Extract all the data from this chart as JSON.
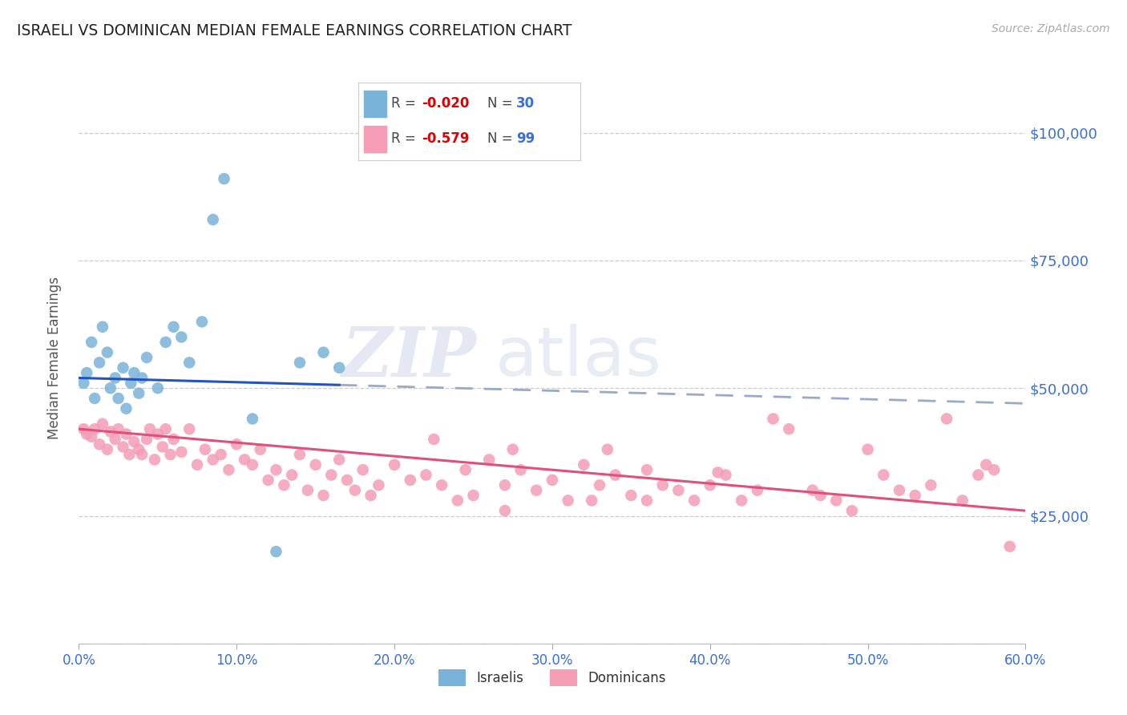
{
  "title": "ISRAELI VS DOMINICAN MEDIAN FEMALE EARNINGS CORRELATION CHART",
  "source": "Source: ZipAtlas.com",
  "ylabel": "Median Female Earnings",
  "xtick_vals": [
    0.0,
    10.0,
    20.0,
    30.0,
    40.0,
    50.0,
    60.0
  ],
  "ytick_vals": [
    0,
    25000,
    50000,
    75000,
    100000
  ],
  "ytick_labels": [
    "",
    "$25,000",
    "$50,000",
    "$75,000",
    "$100,000"
  ],
  "xmin": 0.0,
  "xmax": 60.0,
  "ymin": 0,
  "ymax": 112000,
  "israeli_color": "#7ab3d9",
  "dominican_color": "#f49db5",
  "israeli_R": "-0.020",
  "israeli_N": "30",
  "dominican_R": "-0.579",
  "dominican_N": "99",
  "watermark_zip": "ZIP",
  "watermark_atlas": "atlas",
  "background_color": "#ffffff",
  "grid_color": "#cccccc",
  "axis_label_color": "#3a6fd8",
  "title_color": "#222222",
  "legend_R_color": "#dd0000",
  "legend_N_color": "#3a6fd8",
  "israeli_line_color": "#2255bb",
  "dominican_line_color": "#e0507a",
  "dashed_line_color": "#99aacc",
  "israeli_dots_x": [
    0.3,
    0.5,
    0.8,
    1.0,
    1.3,
    1.5,
    1.8,
    2.0,
    2.3,
    2.5,
    2.8,
    3.0,
    3.3,
    3.5,
    3.8,
    4.0,
    4.3,
    5.0,
    5.5,
    6.0,
    6.5,
    7.0,
    7.8,
    8.5,
    9.2,
    11.0,
    12.5,
    14.0,
    15.5,
    16.5
  ],
  "israeli_dots_y": [
    51000,
    53000,
    59000,
    48000,
    55000,
    62000,
    57000,
    50000,
    52000,
    48000,
    54000,
    46000,
    51000,
    53000,
    49000,
    52000,
    56000,
    50000,
    59000,
    62000,
    60000,
    55000,
    63000,
    83000,
    91000,
    44000,
    18000,
    55000,
    57000,
    54000
  ],
  "dominican_dots_x": [
    0.3,
    0.5,
    0.8,
    1.0,
    1.3,
    1.5,
    1.8,
    2.0,
    2.3,
    2.5,
    2.8,
    3.0,
    3.2,
    3.5,
    3.8,
    4.0,
    4.3,
    4.5,
    4.8,
    5.0,
    5.3,
    5.5,
    5.8,
    6.0,
    6.5,
    7.0,
    7.5,
    8.0,
    8.5,
    9.0,
    9.5,
    10.0,
    10.5,
    11.0,
    11.5,
    12.0,
    12.5,
    13.0,
    13.5,
    14.0,
    14.5,
    15.0,
    15.5,
    16.0,
    16.5,
    17.0,
    17.5,
    18.0,
    18.5,
    19.0,
    20.0,
    21.0,
    22.0,
    23.0,
    24.0,
    24.5,
    25.0,
    26.0,
    27.0,
    27.5,
    28.0,
    29.0,
    30.0,
    31.0,
    32.0,
    33.0,
    33.5,
    34.0,
    35.0,
    36.0,
    37.0,
    38.0,
    39.0,
    40.0,
    41.0,
    42.0,
    43.0,
    44.0,
    45.0,
    46.5,
    47.0,
    48.0,
    49.0,
    50.0,
    51.0,
    52.0,
    53.0,
    54.0,
    55.0,
    56.0,
    57.0,
    57.5,
    58.0,
    59.0,
    22.5,
    27.0,
    32.5,
    36.0,
    40.5
  ],
  "dominican_dots_y": [
    42000,
    41000,
    40500,
    42000,
    39000,
    43000,
    38000,
    41500,
    40000,
    42000,
    38500,
    41000,
    37000,
    39500,
    38000,
    37000,
    40000,
    42000,
    36000,
    41000,
    38500,
    42000,
    37000,
    40000,
    37500,
    42000,
    35000,
    38000,
    36000,
    37000,
    34000,
    39000,
    36000,
    35000,
    38000,
    32000,
    34000,
    31000,
    33000,
    37000,
    30000,
    35000,
    29000,
    33000,
    36000,
    32000,
    30000,
    34000,
    29000,
    31000,
    35000,
    32000,
    33000,
    31000,
    28000,
    34000,
    29000,
    36000,
    31000,
    38000,
    34000,
    30000,
    32000,
    28000,
    35000,
    31000,
    38000,
    33000,
    29000,
    28000,
    31000,
    30000,
    28000,
    31000,
    33000,
    28000,
    30000,
    44000,
    42000,
    30000,
    29000,
    28000,
    26000,
    38000,
    33000,
    30000,
    29000,
    31000,
    44000,
    28000,
    33000,
    35000,
    34000,
    19000,
    40000,
    26000,
    28000,
    34000,
    33500
  ]
}
